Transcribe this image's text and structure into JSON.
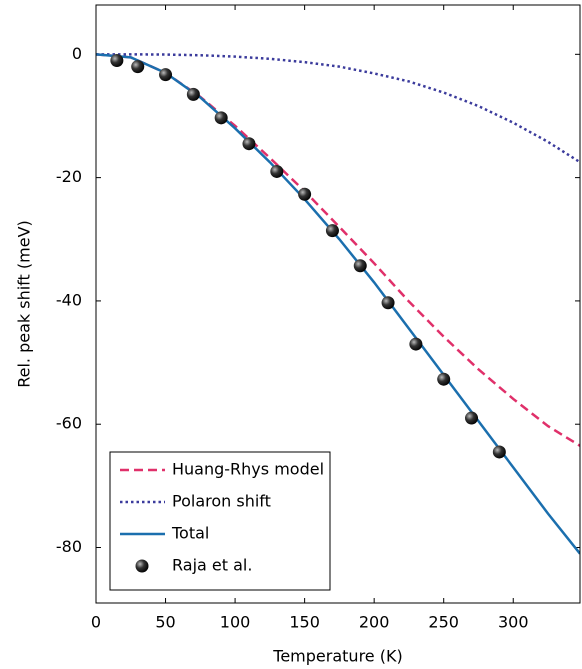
{
  "chart_data": {
    "type": "line",
    "xlabel": "Temperature (K)",
    "ylabel": "Rel. peak shift (meV)",
    "xlim": [
      0,
      348
    ],
    "ylim": [
      -89,
      8
    ],
    "xticks": [
      0,
      50,
      100,
      150,
      200,
      250,
      300
    ],
    "yticks": [
      0,
      -20,
      -40,
      -60,
      -80
    ],
    "legend": "lower left",
    "series": [
      {
        "name": "Huang-Rhys model",
        "color": "#e0306a",
        "dash": "dashed",
        "type": "line",
        "x": [
          0,
          25,
          50,
          75,
          100,
          125,
          150,
          175,
          200,
          225,
          250,
          275,
          300,
          325,
          348
        ],
        "values": [
          0,
          -0.5,
          -3,
          -6.9,
          -11.6,
          -16.8,
          -22.2,
          -28,
          -33.9,
          -40.1,
          -45.8,
          -51.1,
          -55.9,
          -60.3,
          -63.5
        ]
      },
      {
        "name": "Polaron shift",
        "color": "#3b3b9c",
        "dash": "dotted",
        "type": "line",
        "x": [
          0,
          25,
          50,
          75,
          100,
          125,
          150,
          175,
          200,
          225,
          250,
          275,
          300,
          325,
          348
        ],
        "values": [
          0,
          0,
          -0.04,
          -0.15,
          -0.37,
          -0.73,
          -1.27,
          -2,
          -3.1,
          -4.4,
          -6.2,
          -8.4,
          -11.1,
          -14.2,
          -17.5
        ]
      },
      {
        "name": "Total",
        "color": "#1b6fae",
        "dash": "solid",
        "type": "line",
        "x": [
          0,
          25,
          50,
          75,
          100,
          125,
          150,
          175,
          200,
          225,
          250,
          275,
          300,
          325,
          348
        ],
        "values": [
          0,
          -0.5,
          -3,
          -7,
          -12,
          -17.5,
          -23.5,
          -30,
          -37,
          -44.5,
          -52,
          -59.5,
          -67,
          -74.5,
          -81
        ]
      },
      {
        "name": "Raja et al.",
        "color": "#000000",
        "type": "scatter",
        "x": [
          15,
          30,
          50,
          70,
          90,
          110,
          130,
          150,
          170,
          190,
          210,
          230,
          250,
          270,
          290
        ],
        "values": [
          -1,
          -2,
          -3.3,
          -6.5,
          -10.3,
          -14.5,
          -19,
          -22.7,
          -28.6,
          -34.3,
          -40.3,
          -47,
          -52.7,
          -59,
          -64.5
        ]
      }
    ]
  }
}
